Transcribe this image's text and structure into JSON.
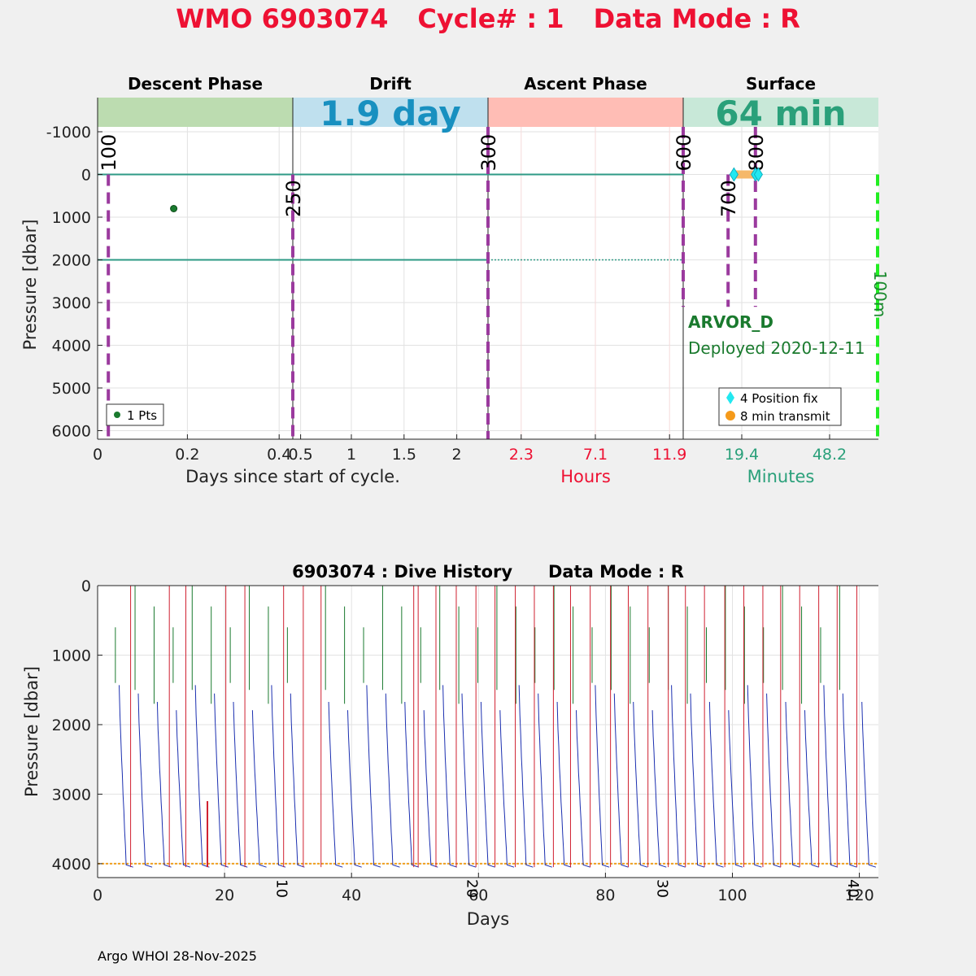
{
  "title": {
    "wmo": "WMO 6903074",
    "cycle": "Cycle# : 1",
    "mode": "Data Mode : R",
    "color": "#ee1133"
  },
  "chart_data": [
    {
      "type": "scatter",
      "name": "cycle-timeline",
      "phases": [
        {
          "label": "Descent Phase",
          "color": "#bcdcb0",
          "banner": ""
        },
        {
          "label": "Drift",
          "color": "#bfe0ee",
          "banner": "1.9 day",
          "banner_color": "#1890c0"
        },
        {
          "label": "Ascent Phase",
          "color": "#ffbdb5",
          "banner": ""
        },
        {
          "label": "Surface",
          "color": "#c8e8d8",
          "banner": "64 min",
          "banner_color": "#2aa07a"
        }
      ],
      "ylabel": "Pressure [dbar]",
      "ylim": [
        6200,
        -1800
      ],
      "yticks": [
        -1000,
        0,
        1000,
        2000,
        3000,
        4000,
        5000,
        6000
      ],
      "yticklabels": [
        "-1000",
        "0",
        "1000",
        "2000",
        "3000",
        "4000",
        "5000",
        "6000"
      ],
      "xticks": [
        {
          "label": "0",
          "color": "#222222",
          "seg": 0,
          "f": 0.0
        },
        {
          "label": "0.2",
          "color": "#222222",
          "seg": 0,
          "f": 0.46
        },
        {
          "label": "0.4",
          "color": "#222222",
          "seg": 0,
          "f": 0.93
        },
        {
          "label": "0.5",
          "color": "#222222",
          "seg": 1,
          "f": 0.04
        },
        {
          "label": "1",
          "color": "#222222",
          "seg": 1,
          "f": 0.3
        },
        {
          "label": "1.5",
          "color": "#222222",
          "seg": 1,
          "f": 0.57
        },
        {
          "label": "2",
          "color": "#222222",
          "seg": 1,
          "f": 0.84
        },
        {
          "label": "2.3",
          "color": "#ee1133",
          "seg": 2,
          "f": 0.17
        },
        {
          "label": "7.1",
          "color": "#ee1133",
          "seg": 2,
          "f": 0.55
        },
        {
          "label": "11.9",
          "color": "#ee1133",
          "seg": 2,
          "f": 0.93
        },
        {
          "label": "19.4",
          "color": "#2aa07a",
          "seg": 3,
          "f": 0.3
        },
        {
          "label": "48.2",
          "color": "#2aa07a",
          "seg": 3,
          "f": 0.75
        }
      ],
      "xlabels": [
        {
          "text": "Days since start of cycle.",
          "color": "#222222"
        },
        {
          "text": "Hours",
          "color": "#ee1133"
        },
        {
          "text": "Minutes",
          "color": "#2aa07a"
        }
      ],
      "depth_lines": [
        0,
        2000
      ],
      "events": [
        {
          "label": "100",
          "seg": 0,
          "f": 0.055,
          "top": 0
        },
        {
          "label": "250",
          "seg": 0,
          "f": 1.0,
          "top": 0
        },
        {
          "label": "300",
          "seg": 2,
          "f": 0.0,
          "top": -1800
        },
        {
          "label": "600",
          "seg": 3,
          "f": 0.0,
          "top": -1800
        },
        {
          "label": "700",
          "seg": 3,
          "f": 0.23,
          "top": 0
        },
        {
          "label": "800",
          "seg": 3,
          "f": 0.37,
          "top": -1800
        }
      ],
      "points": [
        {
          "seg": 0,
          "f": 0.39,
          "pressure": 800
        }
      ],
      "points_label": "1 Pts",
      "position_fixes": [
        {
          "f": 0.26,
          "pressure": 0
        },
        {
          "f": 0.37,
          "pressure": 0
        },
        {
          "f": 0.385,
          "pressure": 0
        }
      ],
      "transmit_span": [
        0.25,
        0.4
      ],
      "legend": {
        "fix": "4 Position fix",
        "transmit": "8 min transmit"
      },
      "float_type": "ARVOR_D",
      "deployed": "Deployed 2020-12-11",
      "green_marker_label": "100m"
    },
    {
      "type": "line",
      "name": "dive-history",
      "title": "6903074 : Dive History      Data Mode : R",
      "xlabel": "Days",
      "ylabel": "Pressure [dbar]",
      "xlim": [
        0,
        123
      ],
      "ylim": [
        0,
        4200
      ],
      "xticks": [
        0,
        20,
        40,
        60,
        80,
        100,
        120
      ],
      "yticks": [
        0,
        1000,
        2000,
        3000,
        4000
      ],
      "cycle_ticks": [
        {
          "label": "10",
          "day": 29
        },
        {
          "label": "20",
          "day": 59
        },
        {
          "label": "30",
          "day": 89
        },
        {
          "label": "40",
          "day": 119
        }
      ],
      "park_pressure": 4000,
      "cycle_days": [
        3,
        6,
        9,
        12,
        15,
        18,
        21,
        24,
        27,
        30,
        36,
        39,
        42,
        45,
        48,
        51,
        54,
        57,
        60,
        63,
        66,
        69,
        72,
        75,
        78,
        81,
        84,
        87,
        90,
        93,
        96,
        99,
        102,
        105,
        108,
        111,
        114,
        117,
        120
      ],
      "red_days": [
        5.2,
        11.3,
        13.9,
        20.2,
        23.2,
        29.3,
        32.4,
        35.2,
        49.8,
        50.5,
        53.3,
        56.5,
        59.6,
        62.6,
        65.8,
        68.8,
        71.8,
        74.5,
        77.6,
        80.8,
        83.6,
        86.7,
        89.9,
        92.6,
        95.6,
        98.8,
        101.8,
        104.8,
        107.6,
        110.6,
        113.6,
        116.5,
        119.6
      ],
      "green_days": [
        2.8,
        5.9,
        8.9,
        11.9,
        14.9,
        17.9,
        20.9,
        23.9,
        26.9,
        29.9,
        35.9,
        38.9,
        41.9,
        44.9,
        47.9,
        50.9,
        53.9,
        56.9,
        59.9,
        62.9,
        65.9,
        68.9,
        71.9,
        74.9,
        77.9,
        80.9,
        83.9,
        86.9,
        89.9,
        92.9,
        95.9,
        98.9,
        101.9,
        104.9,
        107.9,
        110.9,
        113.9,
        116.9
      ]
    }
  ],
  "footer": "Argo WHOI 28-Nov-2025"
}
